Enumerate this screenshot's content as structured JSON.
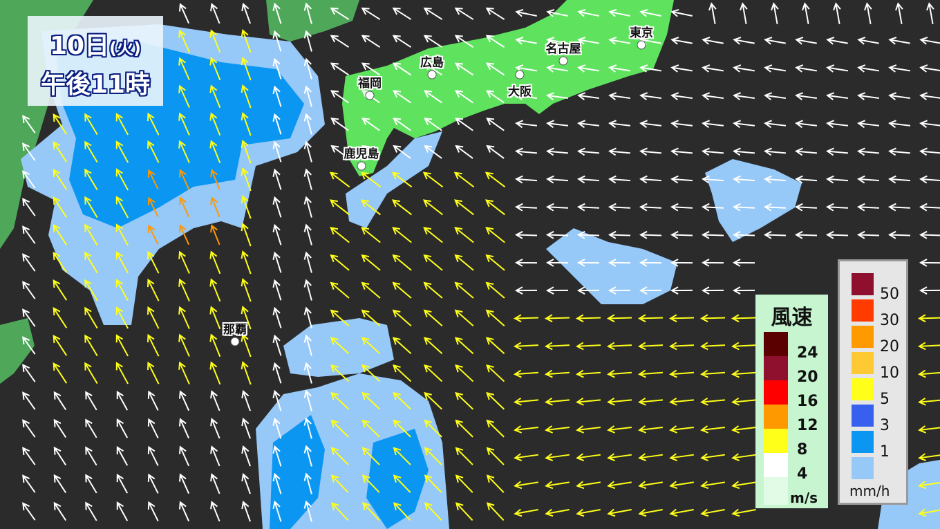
{
  "header": {
    "date": "10日",
    "weekday": "(火)",
    "time": "午後11時"
  },
  "cities": [
    {
      "name": "東京"
    },
    {
      "name": "名古屋"
    },
    {
      "name": "広島"
    },
    {
      "name": "福岡"
    },
    {
      "name": "大阪"
    },
    {
      "name": "鹿児島"
    },
    {
      "name": "那覇"
    }
  ],
  "wind_legend": {
    "title": "風速",
    "unit": "m/s",
    "levels": [
      {
        "label": "24",
        "color": "#5a0000"
      },
      {
        "label": "20",
        "color": "#8e0f2e"
      },
      {
        "label": "16",
        "color": "#ff0000"
      },
      {
        "label": "12",
        "color": "#ff9900"
      },
      {
        "label": "8",
        "color": "#ffff1a"
      },
      {
        "label": "4",
        "color": "#ffffff"
      }
    ],
    "low_color": "#e2fbe6"
  },
  "rain_legend": {
    "unit": "mm/h",
    "levels": [
      {
        "label": "50",
        "color": "#8e0f2e"
      },
      {
        "label": "30",
        "color": "#ff3c00"
      },
      {
        "label": "20",
        "color": "#ff9900"
      },
      {
        "label": "10",
        "color": "#ffc933"
      },
      {
        "label": "5",
        "color": "#ffff1a"
      },
      {
        "label": "3",
        "color": "#3760ef"
      },
      {
        "label": "1",
        "color": "#0b96f2"
      },
      {
        "label": "",
        "color": "#96c8f8"
      }
    ]
  },
  "colors": {
    "sea": "#2b2b2b",
    "land_japan": "#5fe35f",
    "land_continent": "#4fa85a",
    "rain_light": "#96c8f8",
    "rain_mid": "#0b96f2"
  }
}
